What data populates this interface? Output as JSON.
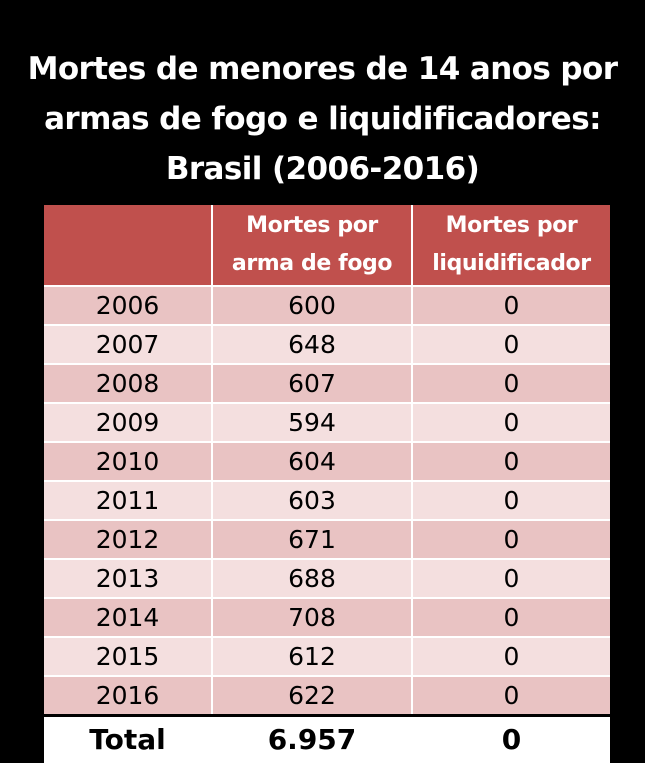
{
  "title": {
    "line1": "Mortes de menores de 14 anos por",
    "line2": "armas de fogo e liquidificadores:",
    "line3": "Brasil (2006-2016)"
  },
  "colors": {
    "background": "#000000",
    "header": "#c0504d",
    "row_dark": "#e9c3c3",
    "row_light": "#f4dfdf"
  },
  "chart_data": {
    "type": "table",
    "title": "Mortes de menores de 14 anos por armas de fogo e liquidificadores: Brasil (2006-2016)",
    "columns": [
      {
        "line1": "",
        "line2": ""
      },
      {
        "line1": "Mortes por",
        "line2": "arma de fogo"
      },
      {
        "line1": "Mortes por",
        "line2": "liquidificador"
      }
    ],
    "rows": [
      [
        "2006",
        "600",
        "0"
      ],
      [
        "2007",
        "648",
        "0"
      ],
      [
        "2008",
        "607",
        "0"
      ],
      [
        "2009",
        "594",
        "0"
      ],
      [
        "2010",
        "604",
        "0"
      ],
      [
        "2011",
        "603",
        "0"
      ],
      [
        "2012",
        "671",
        "0"
      ],
      [
        "2013",
        "688",
        "0"
      ],
      [
        "2014",
        "708",
        "0"
      ],
      [
        "2015",
        "612",
        "0"
      ],
      [
        "2016",
        "622",
        "0"
      ]
    ],
    "total": [
      "Total",
      "6.957",
      "0"
    ]
  }
}
